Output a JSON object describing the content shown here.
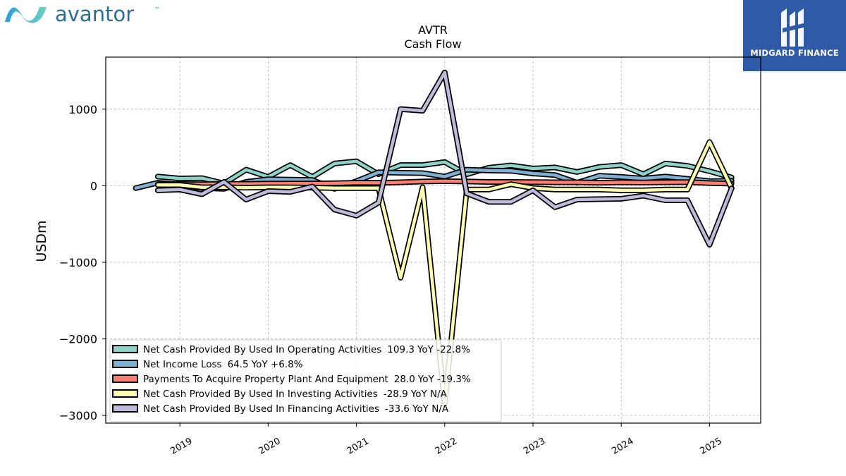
{
  "brand": {
    "name": "avantor",
    "tm": "™",
    "color": "#2a6f8f"
  },
  "badge": {
    "text": "MIDGARD FINANCE",
    "color": "#2f5aa8"
  },
  "chart_data": {
    "type": "line",
    "title": "AVTR",
    "subtitle": "Cash Flow",
    "ylabel": "USDm",
    "xlabel": "",
    "ylim": [
      -3100,
      1680
    ],
    "xlim": [
      2018.16,
      2025.58
    ],
    "yticks": [
      1000,
      0,
      -1000,
      -2000,
      -3000
    ],
    "xticks": [
      2019,
      2020,
      2021,
      2022,
      2023,
      2024,
      2025
    ],
    "xtick_labels": [
      "2019",
      "2020",
      "2021",
      "2022",
      "2023",
      "2024",
      "2025"
    ],
    "grid": true,
    "legend_position": "lower-left",
    "series": [
      {
        "name": "Net Cash Provided By Used In Operating Activities",
        "legend_value": "109.3",
        "legend_change": "YoY -22.8%",
        "color": "#8dd3c7",
        "x": [
          2018.75,
          2019.0,
          2019.25,
          2019.5,
          2019.75,
          2020.0,
          2020.25,
          2020.5,
          2020.75,
          2021.0,
          2021.25,
          2021.5,
          2021.75,
          2022.0,
          2022.25,
          2022.5,
          2022.75,
          2023.0,
          2023.25,
          2023.5,
          2023.75,
          2024.0,
          2024.25,
          2024.5,
          2024.75,
          2025.0,
          2025.25
        ],
        "y": [
          120,
          95,
          100,
          30,
          210,
          115,
          270,
          115,
          290,
          320,
          150,
          270,
          270,
          310,
          150,
          235,
          265,
          225,
          240,
          180,
          245,
          270,
          150,
          290,
          260,
          190,
          109
        ]
      },
      {
        "name": "Net Income Loss",
        "legend_value": "64.5",
        "legend_change": "YoY +6.8%",
        "color": "#80b1d3",
        "x": [
          2018.5,
          2018.75,
          2019.0,
          2019.25,
          2019.5,
          2019.75,
          2020.0,
          2020.25,
          2020.5,
          2020.75,
          2021.0,
          2021.25,
          2021.5,
          2021.75,
          2022.0,
          2022.25,
          2022.5,
          2022.75,
          2023.0,
          2023.25,
          2023.5,
          2023.75,
          2024.0,
          2024.25,
          2024.5,
          2024.75,
          2025.0,
          2025.25
        ],
        "y": [
          -30,
          40,
          10,
          -30,
          -40,
          50,
          85,
          80,
          75,
          -40,
          60,
          175,
          170,
          165,
          120,
          210,
          200,
          195,
          160,
          140,
          40,
          130,
          115,
          95,
          120,
          90,
          60,
          65
        ]
      },
      {
        "name": "Payments To Acquire Property Plant And Equipment",
        "legend_value": "28.0",
        "legend_change": "YoY -19.3%",
        "color": "#fb8072",
        "x": [
          2018.75,
          2019.0,
          2019.25,
          2019.5,
          2019.75,
          2020.0,
          2020.25,
          2020.5,
          2020.75,
          2021.0,
          2021.25,
          2021.5,
          2021.75,
          2022.0,
          2022.25,
          2022.5,
          2022.75,
          2023.0,
          2023.25,
          2023.5,
          2023.75,
          2024.0,
          2024.25,
          2024.5,
          2024.75,
          2025.0,
          2025.25
        ],
        "y": [
          20,
          22,
          20,
          25,
          25,
          28,
          30,
          30,
          32,
          40,
          38,
          45,
          55,
          60,
          55,
          50,
          50,
          48,
          45,
          45,
          40,
          45,
          42,
          45,
          48,
          35,
          28
        ]
      },
      {
        "name": "Net Cash Provided By Used In Investing Activities",
        "legend_value": "-28.9",
        "legend_change": "YoY N/A",
        "color": "#ffffb3",
        "x": [
          2018.75,
          2019.0,
          2019.25,
          2019.5,
          2019.75,
          2020.0,
          2020.25,
          2020.5,
          2020.75,
          2021.0,
          2021.25,
          2021.5,
          2021.75,
          2022.0,
          2022.25,
          2022.5,
          2022.75,
          2023.0,
          2023.25,
          2023.5,
          2023.75,
          2024.0,
          2024.25,
          2024.5,
          2024.75,
          2025.0,
          2025.25
        ],
        "y": [
          10,
          10,
          -20,
          -20,
          -25,
          -20,
          -20,
          -25,
          -30,
          -30,
          -30,
          -1200,
          -20,
          -2850,
          -50,
          -50,
          20,
          -30,
          -50,
          -50,
          -50,
          -60,
          -60,
          -50,
          -50,
          570,
          -29
        ]
      },
      {
        "name": "Net Cash Provided By Used In Financing Activities",
        "legend_value": "-33.6",
        "legend_change": "YoY N/A",
        "color": "#bebada",
        "x": [
          2018.75,
          2019.0,
          2019.25,
          2019.5,
          2019.75,
          2020.0,
          2020.25,
          2020.5,
          2020.75,
          2021.0,
          2021.25,
          2021.5,
          2021.75,
          2022.0,
          2022.25,
          2022.5,
          2022.75,
          2023.0,
          2023.25,
          2023.5,
          2023.75,
          2024.0,
          2024.25,
          2024.5,
          2024.75,
          2025.0,
          2025.25
        ],
        "y": [
          -60,
          -50,
          -110,
          50,
          -180,
          -70,
          -80,
          -10,
          -310,
          -390,
          -220,
          1000,
          980,
          1480,
          -100,
          -210,
          -210,
          -60,
          -280,
          -180,
          -175,
          -170,
          -130,
          -190,
          -190,
          -770,
          -34
        ]
      }
    ]
  }
}
